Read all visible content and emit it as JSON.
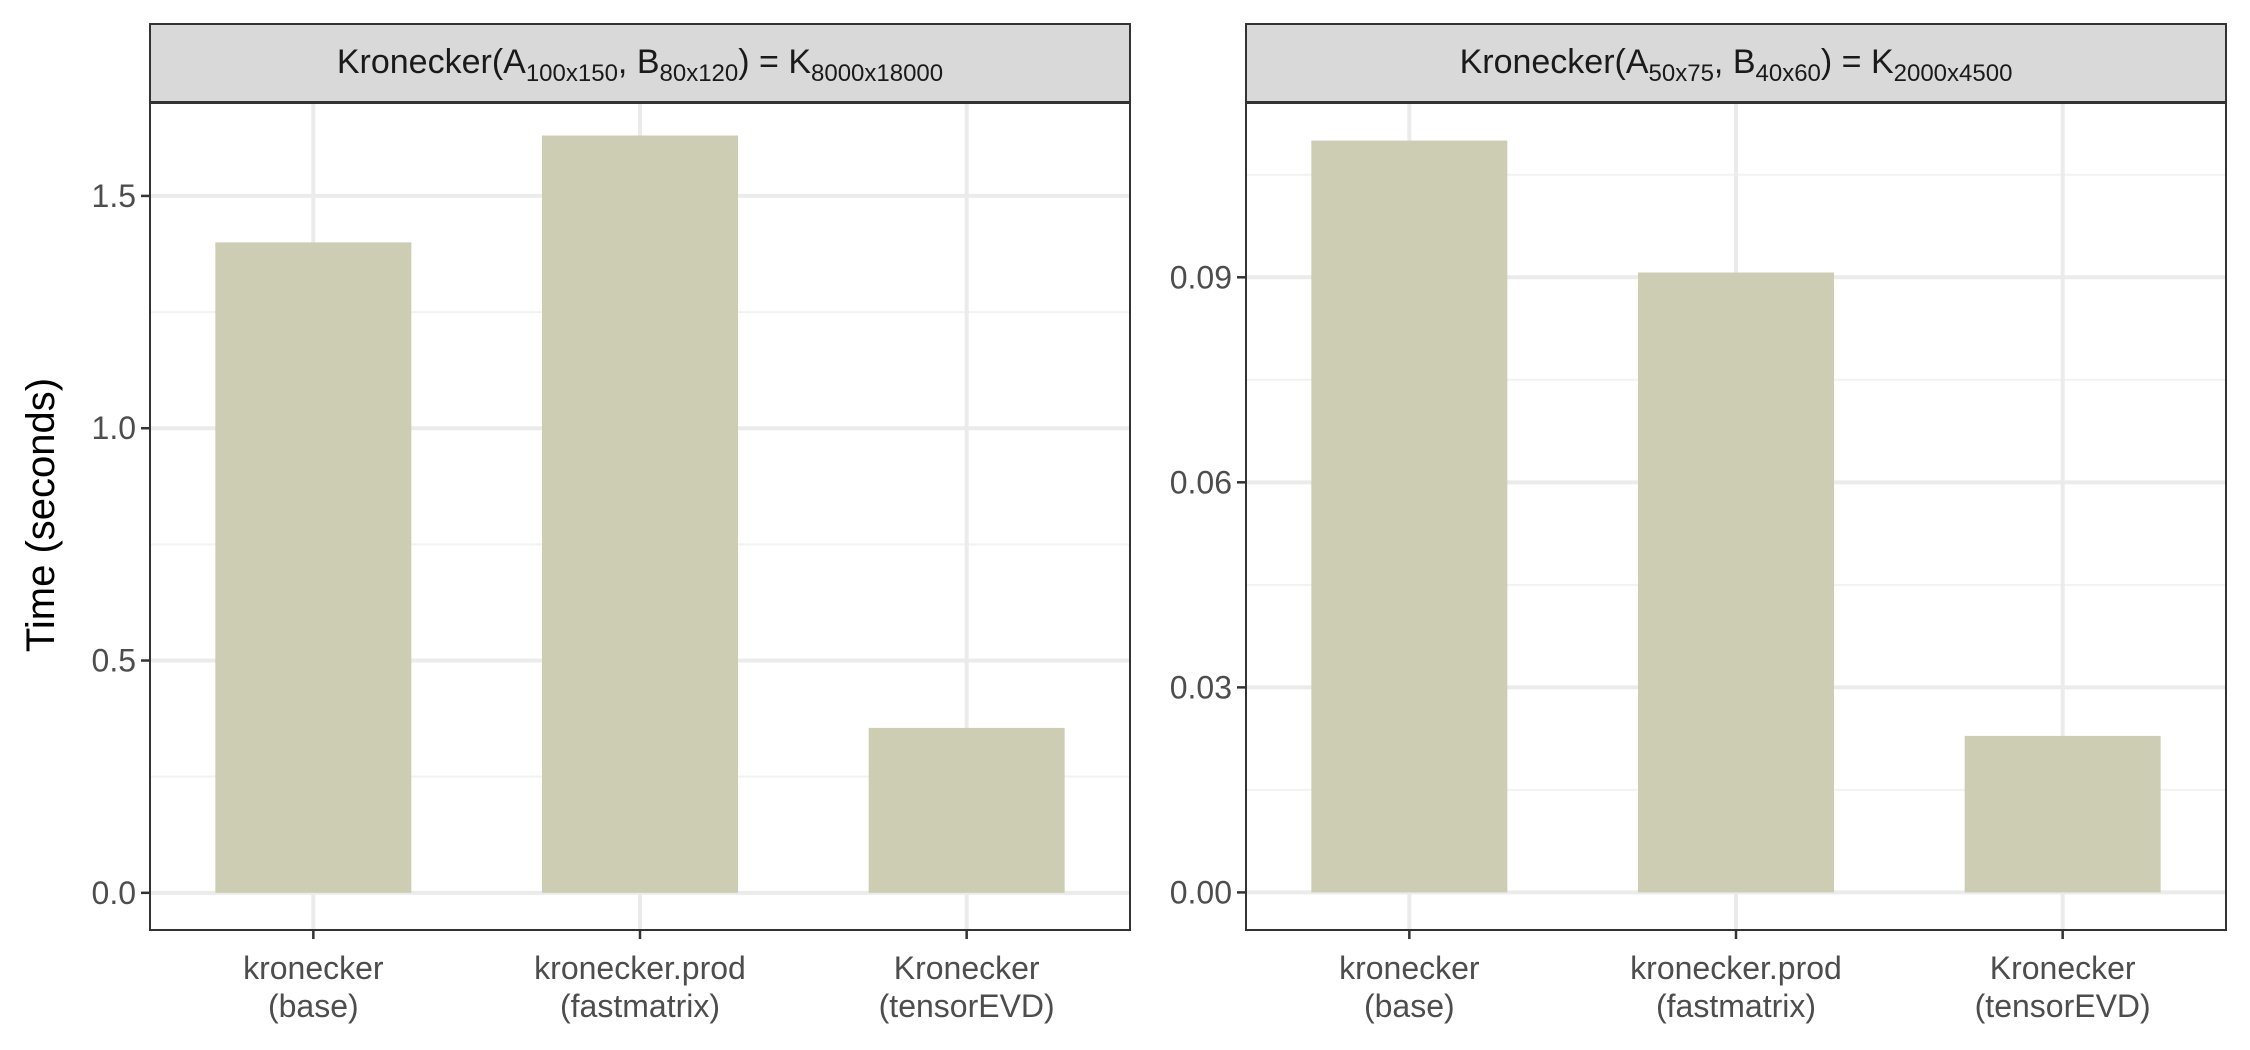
{
  "chart_data": [
    {
      "type": "bar",
      "title": {
        "base": "Kronecker(A",
        "a_sub": "100x150",
        "mid": ", B",
        "b_sub": "80x120",
        "close": ") = K",
        "k_sub": "8000x18000"
      },
      "ylabel": "Time (seconds)",
      "categories": [
        [
          "kronecker",
          "(base)"
        ],
        [
          "kronecker.prod",
          "(fastmatrix)"
        ],
        [
          "Kronecker",
          "(tensorEVD)"
        ]
      ],
      "values": [
        1.4,
        1.63,
        0.355
      ],
      "ylim": [
        -0.08,
        1.7
      ],
      "yticks": [
        0.0,
        0.5,
        1.0,
        1.5
      ],
      "ytick_labels": [
        "0.0",
        "0.5",
        "1.0",
        "1.5"
      ],
      "yminor": [
        0.25,
        0.75,
        1.25
      ],
      "bar_color": "#cdcdb4"
    },
    {
      "type": "bar",
      "title": {
        "base": "Kronecker(A",
        "a_sub": "50x75",
        "mid": ", B",
        "b_sub": "40x60",
        "close": ") = K",
        "k_sub": "2000x4500"
      },
      "ylabel": "",
      "categories": [
        [
          "kronecker",
          "(base)"
        ],
        [
          "kronecker.prod",
          "(fastmatrix)"
        ],
        [
          "Kronecker",
          "(tensorEVD)"
        ]
      ],
      "values": [
        0.11,
        0.0907,
        0.0229
      ],
      "ylim": [
        -0.0055,
        0.1155
      ],
      "yticks": [
        0.0,
        0.03,
        0.06,
        0.09
      ],
      "ytick_labels": [
        "0.00",
        "0.03",
        "0.06",
        "0.09"
      ],
      "yminor": [
        0.015,
        0.045,
        0.075,
        0.105
      ],
      "bar_color": "#cdcdb4"
    }
  ],
  "style": {
    "strip_fill": "#d9d9d9",
    "grid_major": "#ebebeb",
    "grid_minor": "#f2f2f2",
    "panel_border": "#333333"
  }
}
